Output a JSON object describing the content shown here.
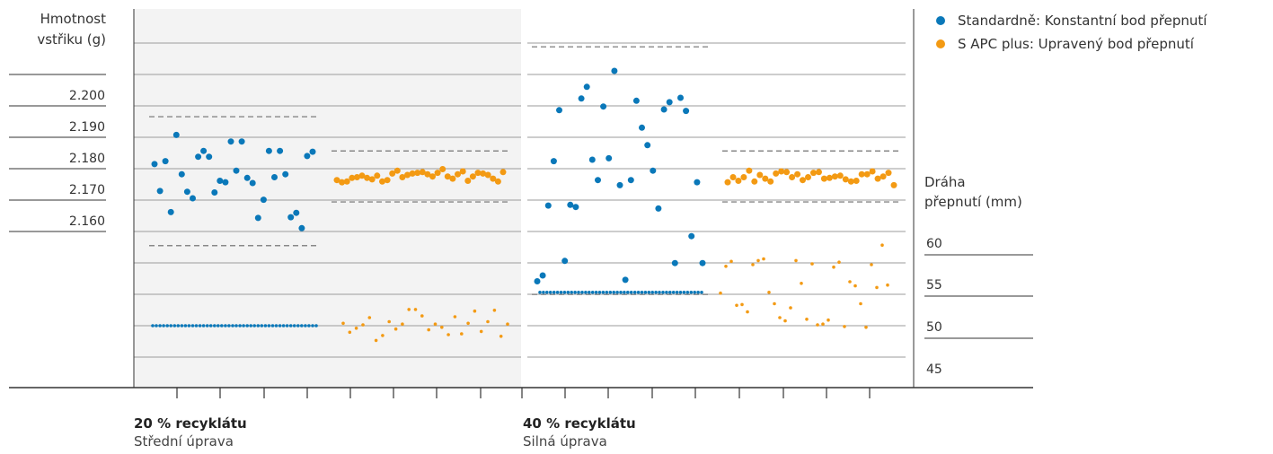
{
  "colors": {
    "standard": "#0a78b9",
    "apc": "#f39a13",
    "panel_left": "#f3f3f3",
    "grid": "#9b9b9b",
    "axis": "#333333",
    "limit": "#888888"
  },
  "legend": [
    {
      "name": "Standardně: Konstantní bod přepnutí"
    },
    {
      "name": "S APC plus: Upravený bod přepnutí"
    }
  ],
  "groups": [
    {
      "title": "20 % recyklátu",
      "subtitle": "Střední úprava"
    },
    {
      "title": "40 % recyklátu",
      "subtitle": "Silná úprava"
    }
  ],
  "chart_data": {
    "type": "scatter",
    "left_axis": {
      "label_lines": [
        "Hmotnost",
        "vstřiku (g)"
      ],
      "ticks": [
        "2.200",
        "2.190",
        "2.180",
        "2.170",
        "2.160"
      ],
      "range": [
        2.1515,
        2.2035
      ]
    },
    "right_axis": {
      "label_lines": [
        "Dráha",
        "přepnutí (mm)"
      ],
      "ticks": [
        "60",
        "55",
        "50",
        "45"
      ],
      "range": [
        42,
        88.5
      ]
    },
    "grid": true,
    "legend_position": "top-right",
    "series": [
      {
        "name": "Standardně: Konstantní bod přepnutí",
        "axis": "left",
        "group": 0,
        "limits": [
          2.171,
          2.1887
        ],
        "values": [
          2.1822,
          2.1785,
          2.1826,
          2.1756,
          2.1862,
          2.1808,
          2.1784,
          2.1775,
          2.1832,
          2.184,
          2.1832,
          2.1783,
          2.1799,
          2.1797,
          2.1853,
          2.1813,
          2.1853,
          2.1803,
          2.1796,
          2.1748,
          2.1773,
          2.184,
          2.1804,
          2.184,
          2.1808,
          2.1749,
          2.1755,
          2.1734,
          2.1833,
          2.1839
        ]
      },
      {
        "name": "S APC plus: Upravený bod přepnutí",
        "axis": "left",
        "group": 0,
        "limits": [
          2.177,
          2.184
        ],
        "values": [
          2.18,
          2.1797,
          2.1798,
          2.1803,
          2.1804,
          2.1806,
          2.1803,
          2.1801,
          2.1806,
          2.1798,
          2.18,
          2.1809,
          2.1813,
          2.1804,
          2.1807,
          2.1809,
          2.181,
          2.1811,
          2.1808,
          2.1805,
          2.181,
          2.1815,
          2.1805,
          2.1802,
          2.1808,
          2.1812,
          2.1799,
          2.1805,
          2.181,
          2.1809,
          2.1807,
          2.1802,
          2.1798,
          2.1811
        ]
      },
      {
        "name": "Standardně: Konstantní bod přepnutí",
        "axis": "left",
        "group": 1,
        "limits": [
          2.1643,
          2.1983
        ],
        "values": [
          2.1661,
          2.1669,
          2.1765,
          2.1826,
          2.1896,
          2.1689,
          2.1766,
          2.1763,
          2.1912,
          2.1928,
          2.1828,
          2.18,
          2.1901,
          2.183,
          2.195,
          2.1793,
          2.1663,
          2.18,
          2.1909,
          2.1872,
          2.1848,
          2.1813,
          2.1761,
          2.1897,
          2.1907,
          2.1686,
          2.1913,
          2.1895,
          2.1723,
          2.1797,
          2.1686
        ]
      },
      {
        "name": "S APC plus: Upravený bod přepnutí",
        "axis": "left",
        "group": 1,
        "limits": [
          2.177,
          2.184
        ],
        "values": [
          2.1797,
          2.1804,
          2.1799,
          2.1804,
          2.1813,
          2.1798,
          2.1807,
          2.1802,
          2.1798,
          2.1809,
          2.1812,
          2.1811,
          2.1804,
          2.1808,
          2.18,
          2.1804,
          2.181,
          2.1811,
          2.1802,
          2.1803,
          2.1805,
          2.1806,
          2.1801,
          2.1798,
          2.1799,
          2.1808,
          2.1808,
          2.1812,
          2.1802,
          2.1805,
          2.181,
          2.1793
        ]
      },
      {
        "name": "Standardně: Konstantní bod přepnutí",
        "axis": "right",
        "group": 0,
        "values": [
          49.6,
          49.6,
          49.6,
          49.6,
          49.6,
          49.6,
          49.6,
          49.6,
          49.6,
          49.6,
          49.6,
          49.6,
          49.6,
          49.6,
          49.6,
          49.6,
          49.6,
          49.6,
          49.6,
          49.6,
          49.6,
          49.6,
          49.6,
          49.6,
          49.6,
          49.6,
          49.6,
          49.6,
          49.6,
          49.6,
          49.6,
          49.6,
          49.6,
          49.6,
          49.6,
          49.6,
          49.6,
          49.6,
          49.6,
          49.6,
          49.6,
          49.6,
          49.6,
          49.6,
          49.6,
          49.6
        ]
      },
      {
        "name": "S APC plus: Upravený bod přepnutí",
        "axis": "right",
        "group": 0,
        "values": [
          49.9,
          48.8,
          49.3,
          49.7,
          50.6,
          47.8,
          48.4,
          50.1,
          49.2,
          49.8,
          51.6,
          51.6,
          50.8,
          49.1,
          49.8,
          49.4,
          48.5,
          50.7,
          48.6,
          49.9,
          51.4,
          48.9,
          50.1,
          51.5,
          48.3,
          49.8
        ]
      },
      {
        "name": "Standardně: Konstantní bod přepnutí",
        "axis": "right",
        "group": 1,
        "values": [
          53.7,
          53.7,
          53.7,
          53.7,
          53.7,
          53.7,
          53.7,
          53.7,
          53.7,
          53.7,
          53.7,
          53.7,
          53.7,
          53.7,
          53.7,
          53.7,
          53.7,
          53.7,
          53.7,
          53.7,
          53.7,
          53.7,
          53.7,
          53.7,
          53.7,
          53.7,
          53.7,
          53.7,
          53.7,
          53.7,
          53.7,
          53.7,
          53.7,
          53.7,
          53.7,
          53.7,
          53.7,
          53.7,
          53.7,
          53.7,
          53.7,
          53.7,
          53.7,
          53.7,
          53.7,
          53.7,
          53.7
        ]
      },
      {
        "name": "S APC plus: Upravený bod přepnutí",
        "axis": "right",
        "group": 1,
        "values": [
          53.6,
          56.9,
          57.5,
          52.1,
          52.2,
          51.3,
          57.1,
          57.6,
          57.8,
          53.7,
          52.3,
          50.6,
          50.2,
          51.8,
          57.6,
          54.8,
          50.4,
          57.2,
          49.7,
          49.8,
          50.3,
          56.8,
          57.4,
          49.5,
          55.0,
          54.5,
          52.3,
          49.4,
          57.1,
          54.3,
          59.5,
          54.6
        ]
      }
    ]
  }
}
